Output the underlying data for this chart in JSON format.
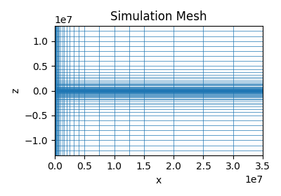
{
  "title": "Simulation Mesh",
  "xlabel": "x",
  "ylabel": "z",
  "xlim": [
    0,
    35000000.0
  ],
  "ylim": [
    -13000000.0,
    13000000.0
  ],
  "line_color": "#1f77b4",
  "line_width": 0.5,
  "figsize": [
    4.0,
    2.8
  ],
  "dpi": 100
}
